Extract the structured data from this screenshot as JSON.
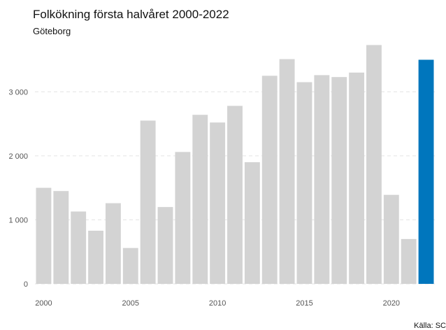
{
  "chart_data": {
    "type": "bar",
    "title": "Folkökning första halvåret 2000-2022",
    "subtitle": "Göteborg",
    "caption": "Källa: SC",
    "x": [
      2000,
      2001,
      2002,
      2003,
      2004,
      2005,
      2006,
      2007,
      2008,
      2009,
      2010,
      2011,
      2012,
      2013,
      2014,
      2015,
      2016,
      2017,
      2018,
      2019,
      2020,
      2021,
      2022
    ],
    "values": [
      1500,
      1450,
      1130,
      830,
      1260,
      560,
      2550,
      1200,
      2060,
      2640,
      2520,
      2780,
      1900,
      3250,
      3510,
      3150,
      3260,
      3230,
      3300,
      3730,
      1390,
      700,
      3500
    ],
    "highlight_index": 22,
    "colors": {
      "bar": "#d3d3d3",
      "highlight": "#0076bd"
    },
    "x_ticks": [
      2000,
      2005,
      2010,
      2015,
      2020
    ],
    "x_tick_labels": [
      "2000",
      "2005",
      "2010",
      "2015",
      "2020"
    ],
    "y_ticks": [
      0,
      1000,
      2000,
      3000
    ],
    "y_tick_labels": [
      "0",
      "1 000",
      "2 000",
      "3 000"
    ],
    "ylim": [
      0,
      3800
    ],
    "xlabel": "",
    "ylabel": "",
    "grid": true,
    "legend": "none"
  }
}
